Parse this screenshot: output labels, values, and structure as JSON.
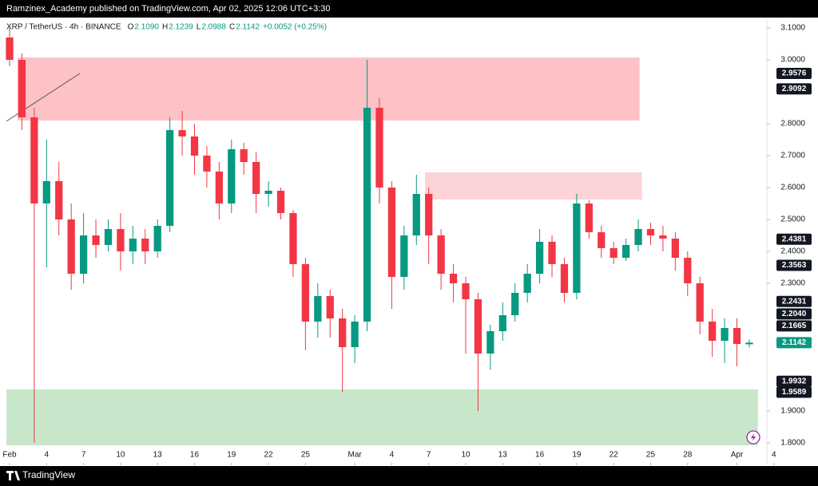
{
  "chart_data": {
    "type": "candlestick",
    "title": "Ramzinex_Academy published on TradingView.com, Apr 02, 2025 12:06 UTC+3:30",
    "subtitle": "XRP / TetherUS · 4h · BINANCE",
    "legend_ohlc": [
      {
        "key": "O",
        "value": "2.1090"
      },
      {
        "key": "H",
        "value": "2.1239"
      },
      {
        "key": "L",
        "value": "2.0988"
      },
      {
        "key": "C",
        "value": "2.1142"
      }
    ],
    "change": "+0.0052 (+0.25%)",
    "footer": "TradingView",
    "up_color": "#089981",
    "down_color": "#f23645",
    "x": [
      0,
      1,
      2,
      3,
      4,
      5,
      6,
      7,
      8,
      9,
      10,
      11,
      12,
      13,
      14,
      15,
      16,
      17,
      18,
      19,
      20,
      21,
      22,
      23,
      24,
      25,
      26,
      27,
      28,
      29,
      30,
      31,
      32,
      33,
      34,
      35,
      36,
      37,
      38,
      39,
      40,
      41,
      42,
      43,
      44,
      45,
      46,
      47,
      48,
      49,
      50,
      51,
      52,
      53,
      54,
      55,
      56,
      57,
      58,
      59,
      60
    ],
    "open": [
      3.07,
      3.0,
      2.82,
      2.55,
      2.62,
      2.5,
      2.33,
      2.45,
      2.42,
      2.47,
      2.4,
      2.44,
      2.4,
      2.48,
      2.78,
      2.76,
      2.7,
      2.65,
      2.55,
      2.72,
      2.68,
      2.58,
      2.59,
      2.52,
      2.36,
      2.18,
      2.26,
      2.19,
      2.1,
      2.18,
      2.85,
      2.6,
      2.32,
      2.45,
      2.58,
      2.45,
      2.33,
      2.3,
      2.25,
      2.08,
      2.15,
      2.2,
      2.27,
      2.33,
      2.43,
      2.36,
      2.27,
      2.55,
      2.46,
      2.41,
      2.38,
      2.42,
      2.47,
      2.45,
      2.44,
      2.38,
      2.3,
      2.18,
      2.12,
      2.16,
      2.109
    ],
    "high": [
      3.1,
      3.02,
      2.85,
      2.75,
      2.68,
      2.55,
      2.52,
      2.5,
      2.5,
      2.52,
      2.48,
      2.47,
      2.5,
      2.82,
      2.84,
      2.8,
      2.73,
      2.68,
      2.75,
      2.74,
      2.71,
      2.62,
      2.6,
      2.53,
      2.38,
      2.3,
      2.28,
      2.22,
      2.2,
      3.0,
      2.88,
      2.62,
      2.48,
      2.64,
      2.6,
      2.47,
      2.36,
      2.32,
      2.27,
      2.17,
      2.24,
      2.3,
      2.36,
      2.47,
      2.45,
      2.38,
      2.58,
      2.56,
      2.48,
      2.43,
      2.44,
      2.5,
      2.49,
      2.48,
      2.46,
      2.4,
      2.32,
      2.22,
      2.19,
      2.19,
      2.1239
    ],
    "low": [
      2.98,
      2.78,
      1.8,
      2.35,
      2.45,
      2.28,
      2.3,
      2.38,
      2.4,
      2.34,
      2.36,
      2.36,
      2.38,
      2.46,
      2.7,
      2.64,
      2.6,
      2.5,
      2.52,
      2.64,
      2.52,
      2.54,
      2.5,
      2.32,
      2.09,
      2.13,
      2.13,
      1.96,
      2.05,
      2.15,
      2.55,
      2.22,
      2.28,
      2.42,
      2.36,
      2.28,
      2.24,
      2.08,
      1.9,
      2.03,
      2.12,
      2.18,
      2.24,
      2.3,
      2.32,
      2.24,
      2.25,
      2.44,
      2.38,
      2.36,
      2.37,
      2.4,
      2.42,
      2.4,
      2.34,
      2.26,
      2.14,
      2.07,
      2.05,
      2.04,
      2.0988
    ],
    "close": [
      3.0,
      2.82,
      2.55,
      2.62,
      2.5,
      2.33,
      2.45,
      2.42,
      2.47,
      2.4,
      2.44,
      2.4,
      2.48,
      2.78,
      2.76,
      2.7,
      2.65,
      2.55,
      2.72,
      2.68,
      2.58,
      2.59,
      2.52,
      2.36,
      2.18,
      2.26,
      2.19,
      2.1,
      2.18,
      2.85,
      2.6,
      2.32,
      2.45,
      2.58,
      2.45,
      2.33,
      2.3,
      2.25,
      2.08,
      2.15,
      2.2,
      2.27,
      2.33,
      2.43,
      2.36,
      2.27,
      2.55,
      2.46,
      2.41,
      2.38,
      2.42,
      2.47,
      2.45,
      2.44,
      2.38,
      2.3,
      2.18,
      2.12,
      2.16,
      2.11,
      2.1142
    ],
    "xlim": [
      -0.26,
      61.3
    ],
    "ylim": [
      1.7375,
      3.1325
    ],
    "xticks": [
      {
        "value": 0,
        "label": "Feb"
      },
      {
        "value": 3,
        "label": "4"
      },
      {
        "value": 6,
        "label": "7"
      },
      {
        "value": 9,
        "label": "10"
      },
      {
        "value": 12,
        "label": "13"
      },
      {
        "value": 15,
        "label": "16"
      },
      {
        "value": 18,
        "label": "19"
      },
      {
        "value": 21,
        "label": "22"
      },
      {
        "value": 24,
        "label": "25"
      },
      {
        "value": 28,
        "label": "Mar"
      },
      {
        "value": 31,
        "label": "4"
      },
      {
        "value": 34,
        "label": "7"
      },
      {
        "value": 37,
        "label": "10"
      },
      {
        "value": 40,
        "label": "13"
      },
      {
        "value": 43,
        "label": "16"
      },
      {
        "value": 46,
        "label": "19"
      },
      {
        "value": 49,
        "label": "22"
      },
      {
        "value": 52,
        "label": "25"
      },
      {
        "value": 55,
        "label": "28"
      },
      {
        "value": 59,
        "label": "Apr"
      },
      {
        "value": 62,
        "label": "4"
      }
    ],
    "yticks": [
      {
        "value": 3.1,
        "label": "3.1000"
      },
      {
        "value": 3.0,
        "label": "3.0000"
      },
      {
        "value": 2.8,
        "label": "2.8000"
      },
      {
        "value": 2.7,
        "label": "2.7000"
      },
      {
        "value": 2.6,
        "label": "2.6000"
      },
      {
        "value": 2.5,
        "label": "2.5000"
      },
      {
        "value": 2.4,
        "label": "2.4000"
      },
      {
        "value": 2.3,
        "label": "2.3000"
      },
      {
        "value": 1.9,
        "label": "1.9000"
      },
      {
        "value": 1.8,
        "label": "1.8000"
      }
    ],
    "price_labels": [
      {
        "value": 2.9576,
        "label": "2.9576",
        "color": "#131722"
      },
      {
        "value": 2.9092,
        "label": "2.9092",
        "color": "#131722"
      },
      {
        "value": 2.4381,
        "label": "2.4381",
        "color": "#131722"
      },
      {
        "value": 2.3563,
        "label": "2.3563",
        "color": "#131722"
      },
      {
        "value": 2.2431,
        "label": "2.2431",
        "color": "#131722"
      },
      {
        "value": 2.204,
        "label": "2.2040",
        "color": "#131722"
      },
      {
        "value": 2.1665,
        "label": "2.1665",
        "color": "#131722"
      },
      {
        "value": 2.1142,
        "label": "2.1142",
        "color": "#089981"
      },
      {
        "value": 1.9932,
        "label": "1.9932",
        "color": "#131722"
      },
      {
        "value": 1.9589,
        "label": "1.9589",
        "color": "#131722"
      }
    ],
    "zones": [
      {
        "x": [
          0.65,
          51.1
        ],
        "y": [
          2.81,
          3.0075
        ],
        "color": "#fcc2c6"
      },
      {
        "x": [
          33.7,
          51.3
        ],
        "y": [
          2.5625,
          2.6475
        ],
        "color": "#fcd3d6"
      },
      {
        "x": [
          -0.26,
          60.7
        ],
        "y": [
          1.7925,
          1.9675
        ],
        "color": "#c8e6c9"
      }
    ],
    "lines": [
      {
        "x": [
          -0.26,
          5.7
        ],
        "y": [
          2.8075,
          2.9575
        ],
        "color": "#555555"
      }
    ]
  }
}
